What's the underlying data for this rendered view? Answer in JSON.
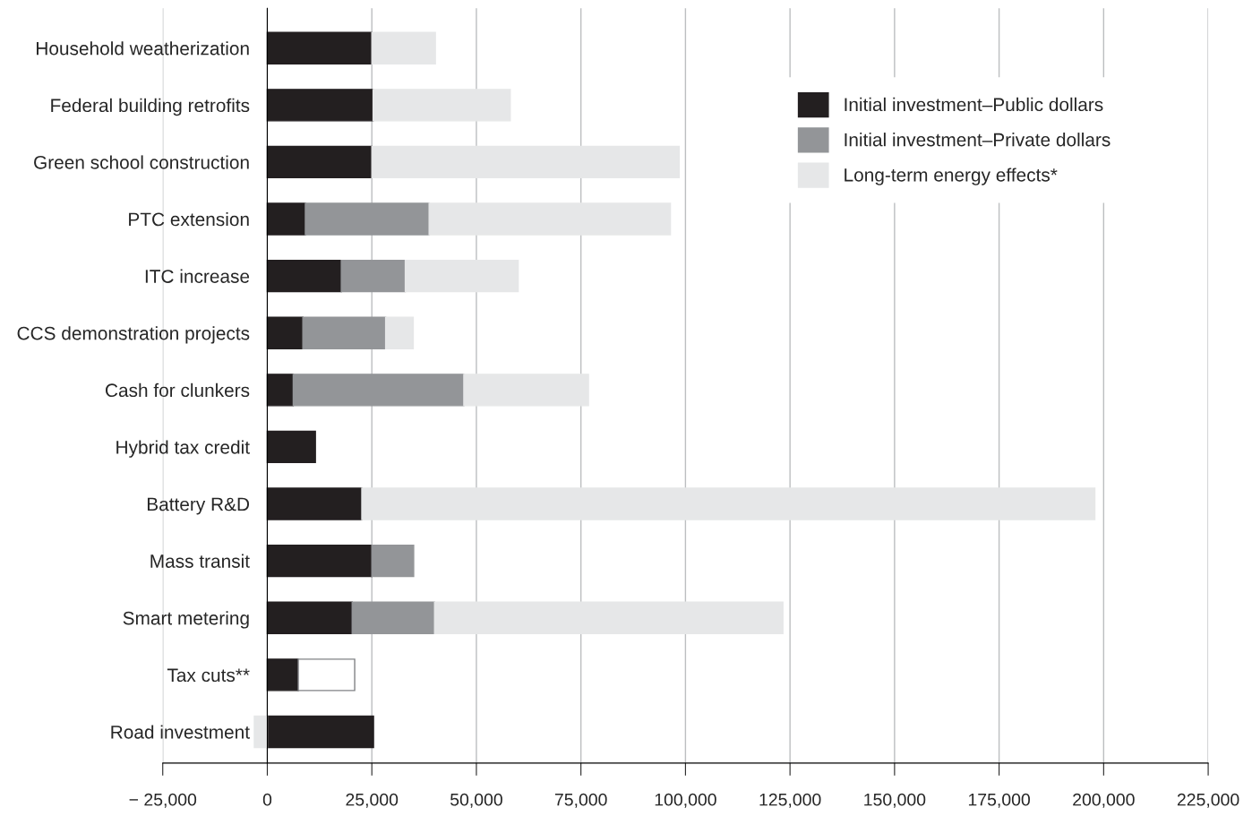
{
  "chart_data": {
    "type": "bar",
    "orientation": "horizontal",
    "stacked": true,
    "categories": [
      "Household weatherization",
      "Federal building retrofits",
      "Green school construction",
      "PTC extension",
      "ITC increase",
      "CCS demonstration projects",
      "Cash for clunkers",
      "Hybrid tax credit",
      "Battery R&D",
      "Mass transit",
      "Smart metering",
      "Tax cuts**",
      "Road investment"
    ],
    "series": [
      {
        "name": "Initial investment–Public dollars",
        "color": "#231f20",
        "values": [
          25000,
          25300,
          25000,
          9100,
          17700,
          8500,
          6200,
          11500,
          22600,
          25000,
          20300,
          7400,
          25400
        ]
      },
      {
        "name": "Initial investment–Private dollars",
        "color": "#939598",
        "values": [
          null,
          null,
          null,
          29600,
          15300,
          19800,
          40800,
          null,
          null,
          10000,
          19700,
          null,
          null
        ]
      },
      {
        "name": "Long-term energy effects*",
        "color": "#e6e7e8",
        "values": [
          15200,
          32800,
          73500,
          57700,
          27000,
          6600,
          29800,
          null,
          175300,
          null,
          83300,
          null,
          -3100
        ]
      },
      {
        "color": "#ffffff",
        "values": [
          null,
          null,
          null,
          null,
          null,
          null,
          null,
          null,
          null,
          null,
          null,
          13500,
          null
        ]
      }
    ],
    "xlim": [
      -25000,
      225000
    ],
    "xticks": [
      {
        "value": -25000,
        "label": "− 25,000"
      },
      0,
      {
        "value": 25000,
        "label": "25,000"
      },
      {
        "value": 50000,
        "label": "50,000"
      },
      {
        "value": 75000,
        "label": "75,000"
      },
      {
        "value": 100000,
        "label": "100,000"
      },
      {
        "value": 125000,
        "label": "125,000"
      },
      {
        "value": 150000,
        "label": "150,000"
      },
      {
        "value": 175000,
        "label": "175,000"
      },
      {
        "value": 200000,
        "label": "200,000"
      },
      {
        "value": 225000,
        "label": "225,000"
      }
    ],
    "grid": "x",
    "legend": "top right"
  }
}
